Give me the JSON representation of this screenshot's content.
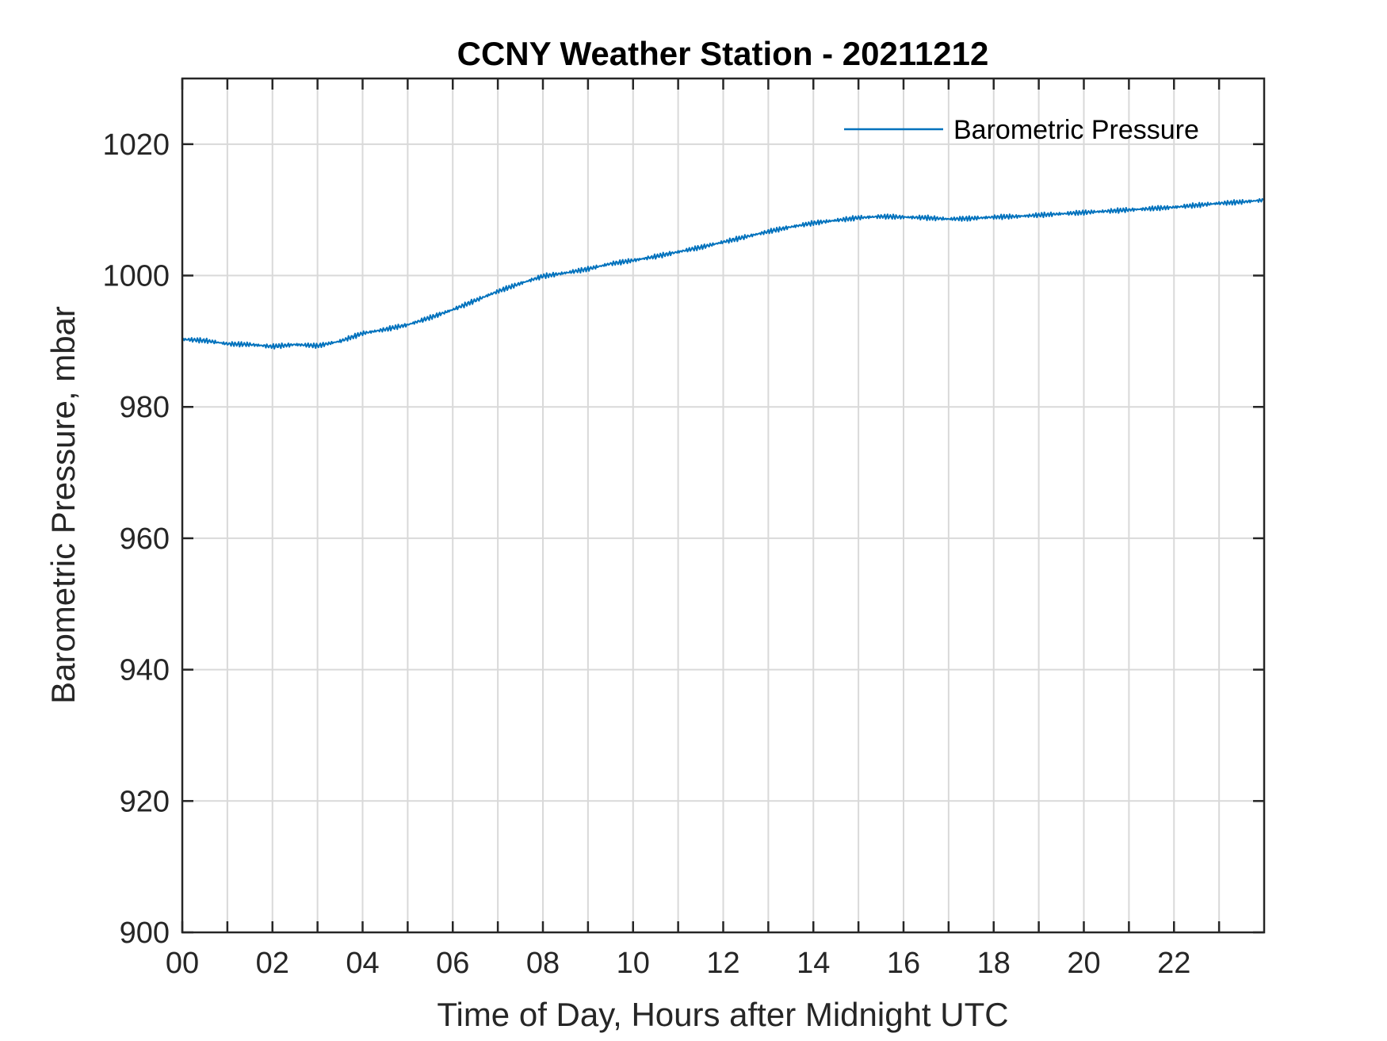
{
  "chart_data": {
    "type": "line",
    "title": "CCNY Weather Station - 20211212",
    "xlabel": "Time of Day, Hours after Midnight UTC",
    "ylabel": "Barometric Pressure, mbar",
    "xlim": [
      0,
      24
    ],
    "ylim": [
      900,
      1030
    ],
    "x_ticks": [
      0,
      2,
      4,
      6,
      8,
      10,
      12,
      14,
      16,
      18,
      20,
      22
    ],
    "x_tick_labels": [
      "00",
      "02",
      "04",
      "06",
      "08",
      "10",
      "12",
      "14",
      "16",
      "18",
      "20",
      "22"
    ],
    "x_minor_ticks": [
      1,
      3,
      5,
      7,
      9,
      11,
      13,
      15,
      17,
      19,
      21,
      23
    ],
    "y_ticks": [
      900,
      920,
      940,
      960,
      980,
      1000,
      1020
    ],
    "y_tick_labels": [
      "900",
      "920",
      "940",
      "960",
      "980",
      "1000",
      "1020"
    ],
    "grid": true,
    "legend_position": "top-right",
    "series": [
      {
        "name": "Barometric Pressure",
        "color": "#0072BD",
        "x": [
          0,
          0.5,
          1,
          1.5,
          2,
          2.5,
          3,
          3.5,
          4,
          4.5,
          5,
          5.5,
          6,
          6.5,
          7,
          7.5,
          8,
          8.5,
          9,
          9.5,
          10,
          10.5,
          11,
          11.5,
          12,
          12.5,
          13,
          13.5,
          14,
          14.5,
          15,
          15.5,
          16,
          16.5,
          17,
          17.5,
          18,
          18.5,
          19,
          19.5,
          20,
          20.5,
          21,
          21.5,
          22,
          22.5,
          23,
          23.5,
          24
        ],
        "y": [
          990.3,
          990.1,
          989.6,
          989.5,
          989.2,
          989.5,
          989.3,
          990.0,
          991.2,
          991.8,
          992.5,
          993.6,
          994.8,
          996.2,
          997.6,
          998.8,
          999.9,
          1000.4,
          1001.0,
          1001.8,
          1002.3,
          1002.9,
          1003.6,
          1004.3,
          1005.1,
          1005.9,
          1006.7,
          1007.4,
          1008.0,
          1008.4,
          1008.8,
          1009.0,
          1008.9,
          1008.8,
          1008.6,
          1008.7,
          1008.9,
          1009.0,
          1009.2,
          1009.4,
          1009.6,
          1009.8,
          1010.0,
          1010.2,
          1010.4,
          1010.7,
          1011.0,
          1011.2,
          1011.5
        ]
      }
    ]
  }
}
